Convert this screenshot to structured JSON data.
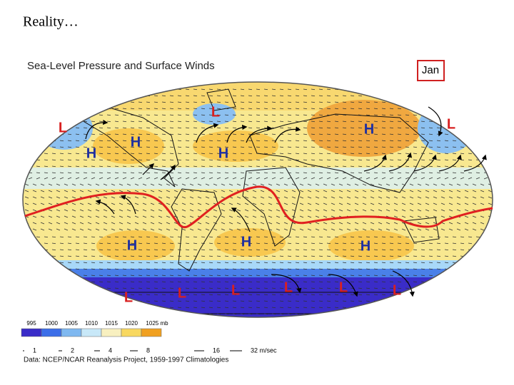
{
  "slide_title": "Reality…",
  "figure": {
    "title": "Sea-Level Pressure and Surface Winds",
    "month": "Jan",
    "centers": [
      "L",
      "L",
      "H",
      "H",
      "H",
      "H",
      "L",
      "H",
      "H",
      "H",
      "L",
      "L",
      "L",
      "L",
      "L",
      "L"
    ],
    "pressure_legend": [
      "995",
      "1000",
      "1005",
      "1010",
      "1015",
      "1020",
      "1025 mb"
    ],
    "wind_legend": [
      "1",
      "2",
      "4",
      "8",
      "16",
      "32 m/sec"
    ],
    "credit": "Data:  NCEP/NCAR Reanalysis Project, 1959-1997 Climatologies"
  }
}
